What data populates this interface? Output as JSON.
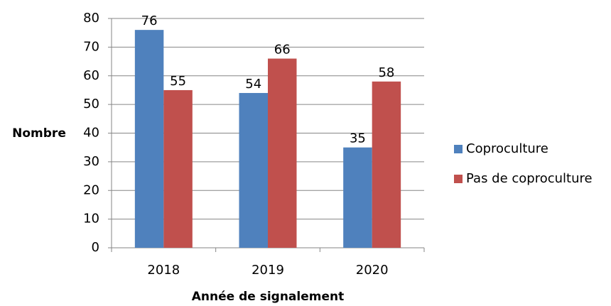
{
  "chart_data": {
    "type": "bar",
    "categories": [
      "2018",
      "2019",
      "2020"
    ],
    "series": [
      {
        "name": "Coproculture",
        "color": "#4f81bd",
        "values": [
          76,
          54,
          35
        ]
      },
      {
        "name": "Pas de coproculture",
        "color": "#c0504d",
        "values": [
          55,
          66,
          58
        ]
      }
    ],
    "ylim": [
      0,
      80
    ],
    "yticks": [
      0,
      10,
      20,
      30,
      40,
      50,
      60,
      70,
      80
    ],
    "grid": true,
    "y_label": "Nombre",
    "x_label": "Année de signalement",
    "legend": "right"
  }
}
